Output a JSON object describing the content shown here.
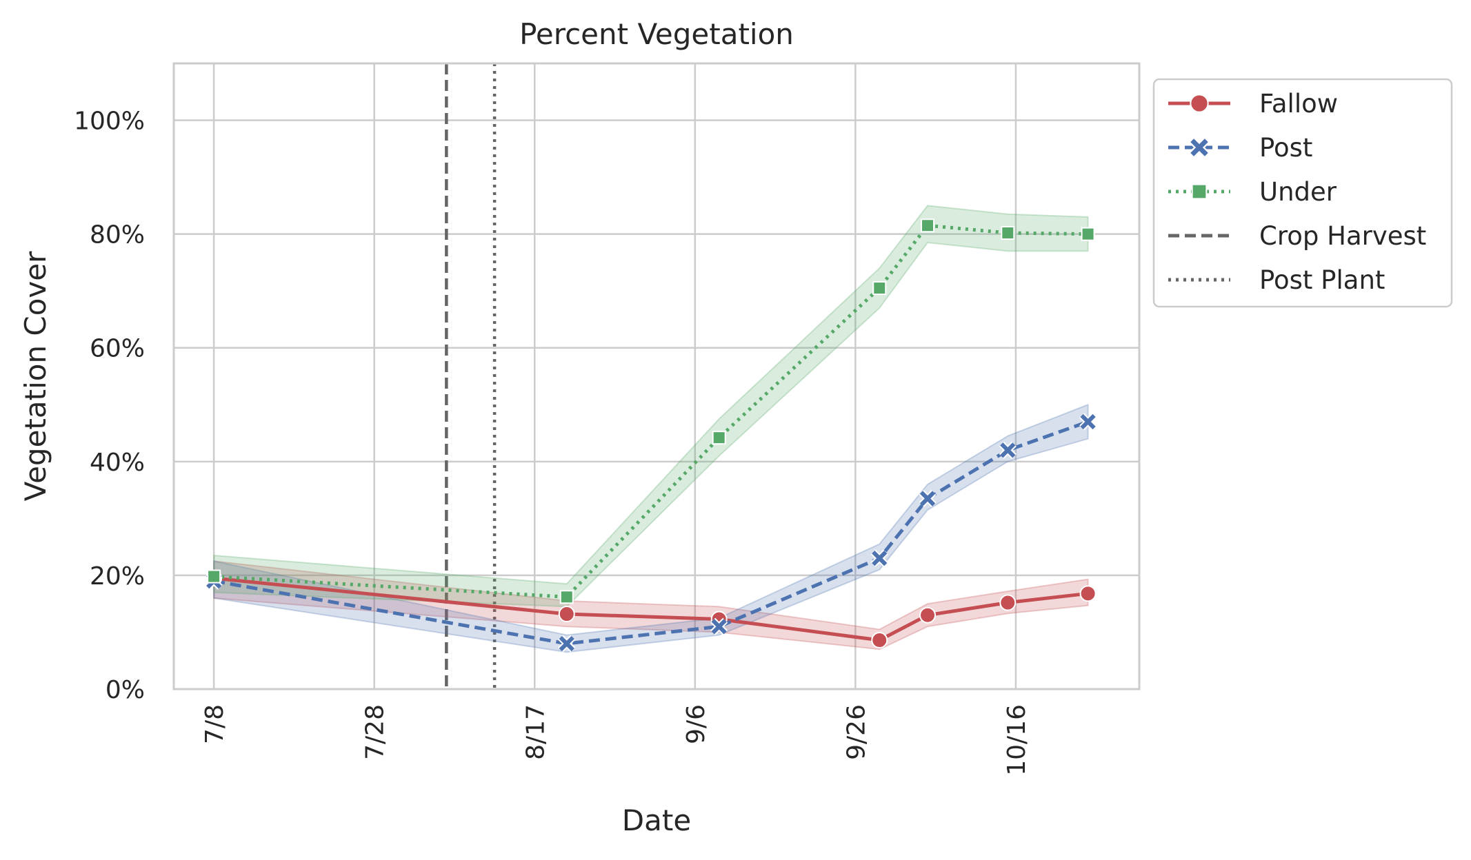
{
  "chart_data": {
    "type": "line",
    "title": "Percent Vegetation",
    "xlabel": "Date",
    "ylabel": "Vegetation Cover",
    "x_start": "7/8",
    "x_day_range": [
      -2.5,
      57.7
    ],
    "xticks": [
      {
        "day": 0,
        "label": "7/8"
      },
      {
        "day": 20,
        "label": "7/28"
      },
      {
        "day": 40,
        "label": "8/17"
      },
      {
        "day": 60,
        "label": "9/6"
      },
      {
        "day": 80,
        "label": "9/26"
      },
      {
        "day": 100,
        "label": "10/16"
      }
    ],
    "ylim": [
      0,
      110
    ],
    "yticks": [
      {
        "value": 0,
        "label": "0%"
      },
      {
        "value": 20,
        "label": "20%"
      },
      {
        "value": 40,
        "label": "40%"
      },
      {
        "value": 60,
        "label": "60%"
      },
      {
        "value": 80,
        "label": "80%"
      },
      {
        "value": 100,
        "label": "100%"
      }
    ],
    "grid": true,
    "legend_position": "outside-right-top",
    "series": [
      {
        "name": "Fallow",
        "color": "#c44e52",
        "line_style": "solid",
        "marker": "circle",
        "days": [
          0,
          44,
          63,
          83,
          89,
          99,
          109
        ],
        "values": [
          19.5,
          13.2,
          12.3,
          8.6,
          13.0,
          15.2,
          16.8
        ],
        "ci_low": [
          16.0,
          11.0,
          10.0,
          7.0,
          11.0,
          13.3,
          14.7
        ],
        "ci_high": [
          22.5,
          15.5,
          14.5,
          10.5,
          15.0,
          17.2,
          19.3
        ]
      },
      {
        "name": "Post",
        "color": "#4c72b0",
        "line_style": "dashed",
        "marker": "x",
        "days": [
          0,
          44,
          63,
          83,
          89,
          99,
          109
        ],
        "values": [
          19.0,
          8.0,
          11.0,
          23.0,
          33.5,
          42.0,
          47.0
        ],
        "ci_low": [
          16.0,
          6.5,
          9.5,
          21.0,
          31.5,
          40.0,
          44.0
        ],
        "ci_high": [
          22.5,
          9.5,
          12.5,
          25.5,
          36.0,
          44.5,
          50.0
        ]
      },
      {
        "name": "Under",
        "color": "#55a868",
        "line_style": "dotted",
        "marker": "square",
        "days": [
          0,
          44,
          63,
          83,
          89,
          99,
          109
        ],
        "values": [
          19.8,
          16.2,
          44.2,
          70.5,
          81.5,
          80.2,
          80.0
        ],
        "ci_low": [
          17.0,
          14.5,
          41.0,
          67.0,
          78.5,
          77.0,
          77.0
        ],
        "ci_high": [
          23.5,
          18.5,
          47.5,
          74.0,
          85.0,
          83.5,
          83.0
        ]
      }
    ],
    "vlines": [
      {
        "name": "Crop Harvest",
        "day": 29,
        "color": "#666666",
        "line_style": "dashed"
      },
      {
        "name": "Post Plant",
        "day": 35,
        "color": "#666666",
        "line_style": "dotted"
      }
    ]
  }
}
